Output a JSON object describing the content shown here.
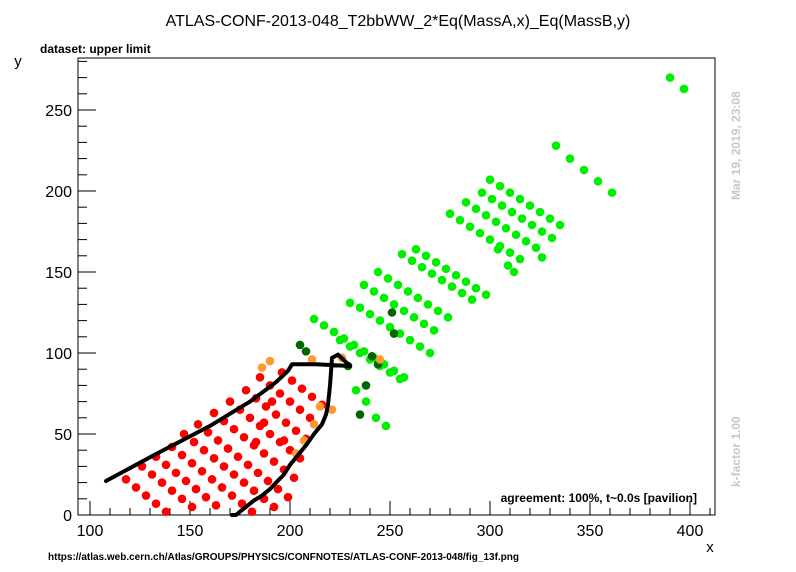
{
  "chart_data": {
    "type": "scatter",
    "title": "ATLAS-CONF-2013-048_T2bbWW_2*Eq(MassA,x)_Eq(MassB,y)",
    "subtitle": "dataset: upper limit",
    "xlabel": "x",
    "ylabel": "y",
    "xlim": [
      100,
      412
    ],
    "ylim": [
      0,
      283
    ],
    "xticks": [
      100,
      150,
      200,
      250,
      300,
      350,
      400
    ],
    "yticks": [
      0,
      50,
      100,
      150,
      200,
      250
    ],
    "annotation": "agreement: 100%, t~0.0s [pavilion]",
    "timestamp": "Mar 19, 2019, 23:08",
    "kfactor": "k-factor 1.00",
    "source_url": "https://atlas.web.cern.ch/Atlas/GROUPS/PHYSICS/CONFNOTES/ATLAS-CONF-2013-048/fig_13f.png",
    "colors": {
      "excluded": "#ff0000",
      "allowed": "#00ee00",
      "excluded_border": "#ff9933",
      "allowed_border": "#006600",
      "contour": "#000000"
    },
    "series": [
      {
        "color": "excluded",
        "points": [
          [
            118,
            22
          ],
          [
            123,
            17
          ],
          [
            128,
            12
          ],
          [
            133,
            7
          ],
          [
            138,
            2
          ],
          [
            126,
            30
          ],
          [
            131,
            25
          ],
          [
            136,
            20
          ],
          [
            141,
            15
          ],
          [
            146,
            10
          ],
          [
            151,
            5
          ],
          [
            133,
            36
          ],
          [
            138,
            31
          ],
          [
            143,
            26
          ],
          [
            148,
            21
          ],
          [
            153,
            16
          ],
          [
            158,
            11
          ],
          [
            163,
            6
          ],
          [
            141,
            42
          ],
          [
            146,
            37
          ],
          [
            151,
            32
          ],
          [
            156,
            27
          ],
          [
            161,
            22
          ],
          [
            166,
            17
          ],
          [
            171,
            12
          ],
          [
            176,
            7
          ],
          [
            181,
            2
          ],
          [
            147,
            50
          ],
          [
            152,
            45
          ],
          [
            157,
            40
          ],
          [
            162,
            35
          ],
          [
            167,
            30
          ],
          [
            172,
            25
          ],
          [
            177,
            20
          ],
          [
            182,
            15
          ],
          [
            187,
            10
          ],
          [
            192,
            5
          ],
          [
            154,
            56
          ],
          [
            159,
            51
          ],
          [
            164,
            46
          ],
          [
            169,
            41
          ],
          [
            174,
            36
          ],
          [
            179,
            31
          ],
          [
            184,
            26
          ],
          [
            189,
            21
          ],
          [
            194,
            16
          ],
          [
            199,
            11
          ],
          [
            162,
            63
          ],
          [
            167,
            58
          ],
          [
            172,
            53
          ],
          [
            177,
            48
          ],
          [
            182,
            43
          ],
          [
            187,
            38
          ],
          [
            192,
            33
          ],
          [
            197,
            28
          ],
          [
            202,
            23
          ],
          [
            170,
            70
          ],
          [
            175,
            65
          ],
          [
            180,
            60
          ],
          [
            185,
            55
          ],
          [
            190,
            50
          ],
          [
            195,
            45
          ],
          [
            200,
            40
          ],
          [
            205,
            35
          ],
          [
            178,
            77
          ],
          [
            183,
            72
          ],
          [
            188,
            67
          ],
          [
            193,
            62
          ],
          [
            198,
            57
          ],
          [
            203,
            52
          ],
          [
            208,
            47
          ],
          [
            185,
            85
          ],
          [
            190,
            80
          ],
          [
            195,
            75
          ],
          [
            200,
            70
          ],
          [
            205,
            65
          ],
          [
            210,
            60
          ],
          [
            196,
            88
          ],
          [
            201,
            83
          ],
          [
            206,
            78
          ],
          [
            211,
            73
          ],
          [
            216,
            68
          ],
          [
            191,
            70
          ],
          [
            187,
            57
          ],
          [
            183,
            45
          ],
          [
            197,
            46
          ]
        ]
      },
      {
        "color": "allowed",
        "points": [
          [
            212,
            121
          ],
          [
            217,
            117
          ],
          [
            222,
            113
          ],
          [
            227,
            109
          ],
          [
            232,
            105
          ],
          [
            237,
            101
          ],
          [
            242,
            97
          ],
          [
            247,
            93
          ],
          [
            252,
            89
          ],
          [
            257,
            85
          ],
          [
            225,
            108
          ],
          [
            230,
            104
          ],
          [
            235,
            100
          ],
          [
            240,
            96
          ],
          [
            245,
            92
          ],
          [
            250,
            88
          ],
          [
            255,
            84
          ],
          [
            233,
            77
          ],
          [
            238,
            70
          ],
          [
            243,
            60
          ],
          [
            248,
            55
          ],
          [
            230,
            131
          ],
          [
            235,
            128
          ],
          [
            240,
            124
          ],
          [
            245,
            120
          ],
          [
            250,
            116
          ],
          [
            255,
            112
          ],
          [
            260,
            108
          ],
          [
            265,
            104
          ],
          [
            270,
            100
          ],
          [
            237,
            142
          ],
          [
            242,
            138
          ],
          [
            247,
            134
          ],
          [
            252,
            130
          ],
          [
            257,
            126
          ],
          [
            262,
            122
          ],
          [
            267,
            118
          ],
          [
            272,
            114
          ],
          [
            244,
            150
          ],
          [
            249,
            146
          ],
          [
            254,
            142
          ],
          [
            259,
            138
          ],
          [
            264,
            134
          ],
          [
            269,
            130
          ],
          [
            274,
            126
          ],
          [
            279,
            122
          ],
          [
            256,
            161
          ],
          [
            261,
            157
          ],
          [
            266,
            153
          ],
          [
            271,
            149
          ],
          [
            276,
            145
          ],
          [
            281,
            141
          ],
          [
            286,
            137
          ],
          [
            291,
            133
          ],
          [
            263,
            164
          ],
          [
            268,
            160
          ],
          [
            273,
            156
          ],
          [
            278,
            152
          ],
          [
            283,
            148
          ],
          [
            288,
            144
          ],
          [
            293,
            140
          ],
          [
            298,
            136
          ],
          [
            280,
            186
          ],
          [
            285,
            182
          ],
          [
            290,
            178
          ],
          [
            295,
            174
          ],
          [
            300,
            170
          ],
          [
            305,
            166
          ],
          [
            310,
            162
          ],
          [
            315,
            158
          ],
          [
            288,
            193
          ],
          [
            293,
            189
          ],
          [
            298,
            185
          ],
          [
            303,
            181
          ],
          [
            308,
            177
          ],
          [
            313,
            173
          ],
          [
            318,
            169
          ],
          [
            323,
            165
          ],
          [
            296,
            199
          ],
          [
            301,
            195
          ],
          [
            306,
            191
          ],
          [
            311,
            187
          ],
          [
            316,
            183
          ],
          [
            321,
            179
          ],
          [
            326,
            175
          ],
          [
            331,
            171
          ],
          [
            300,
            207
          ],
          [
            305,
            203
          ],
          [
            310,
            199
          ],
          [
            315,
            195
          ],
          [
            320,
            191
          ],
          [
            325,
            187
          ],
          [
            330,
            183
          ],
          [
            335,
            179
          ],
          [
            333,
            228
          ],
          [
            340,
            220
          ],
          [
            347,
            213
          ],
          [
            354,
            206
          ],
          [
            361,
            199
          ],
          [
            390,
            270
          ],
          [
            397,
            263
          ],
          [
            304,
            164
          ],
          [
            309,
            154
          ],
          [
            312,
            150
          ],
          [
            326,
            159
          ]
        ]
      },
      {
        "color": "allowed_border",
        "points": [
          [
            205,
            105
          ],
          [
            208,
            101
          ],
          [
            251,
            125
          ],
          [
            252,
            112
          ],
          [
            241,
            98
          ],
          [
            244,
            93
          ],
          [
            238,
            80
          ],
          [
            235,
            62
          ],
          [
            229,
            92
          ]
        ]
      },
      {
        "color": "excluded_border",
        "points": [
          [
            186,
            91
          ],
          [
            190,
            95
          ],
          [
            211,
            96
          ],
          [
            226,
            97
          ],
          [
            203,
            38
          ],
          [
            207,
            46
          ],
          [
            212,
            56
          ],
          [
            215,
            67
          ],
          [
            221,
            65
          ],
          [
            245,
            96
          ]
        ]
      }
    ],
    "contour": [
      [
        108,
        21
      ],
      [
        132,
        37
      ],
      [
        160,
        55
      ],
      [
        180,
        70
      ],
      [
        193,
        82
      ],
      [
        199,
        89
      ],
      [
        201,
        93
      ],
      [
        213,
        93
      ],
      [
        230,
        92
      ],
      [
        224,
        99
      ],
      [
        221,
        97
      ],
      [
        220,
        80
      ],
      [
        219,
        68
      ],
      [
        218,
        62
      ],
      [
        216,
        56
      ],
      [
        212,
        50
      ],
      [
        208,
        43
      ],
      [
        204,
        37
      ],
      [
        200,
        31
      ],
      [
        197,
        25
      ],
      [
        193,
        20
      ],
      [
        190,
        16
      ],
      [
        186,
        12
      ],
      [
        182,
        9
      ],
      [
        179,
        6
      ],
      [
        176,
        3
      ],
      [
        173,
        0
      ],
      [
        171,
        0
      ]
    ]
  }
}
